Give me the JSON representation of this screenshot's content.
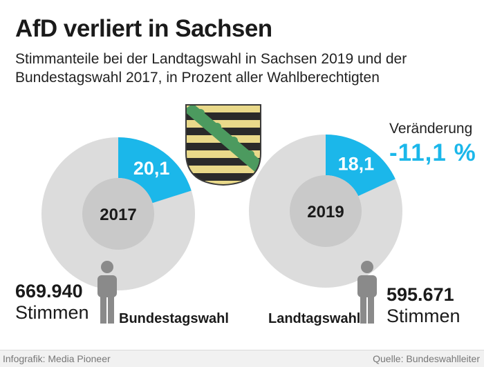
{
  "header": {
    "title": "AfD verliert in Sachsen",
    "subtitle": "Stimmanteile bei der Landtagswahl in Sachsen 2019 und der Bundestagswahl 2017, in Prozent aller Wahlberechtigten"
  },
  "change": {
    "label": "Veränderung",
    "value": "-11,1 %"
  },
  "chart_data": {
    "type": "pie",
    "title": "AfD verliert in Sachsen",
    "subtitle": "Stimmanteile bei der Landtagswahl in Sachsen 2019 und der Bundestagswahl 2017, in Prozent aller Wahlberechtigten",
    "unit": "percent",
    "charts": [
      {
        "year": "2017",
        "election": "Bundestagswahl",
        "value": 20.1,
        "value_label": "20,1",
        "votes": "669.940",
        "votes_unit": "Stimmen"
      },
      {
        "year": "2019",
        "election": "Landtagswahl",
        "value": 18.1,
        "value_label": "18,1",
        "votes": "595.671",
        "votes_unit": "Stimmen"
      }
    ]
  },
  "colors": {
    "accent": "#1bb7ea",
    "ring": "#dcdcdc",
    "hole": "#c9c9c9",
    "person": "#8a8a8a",
    "footer_bg": "#f1f1f1"
  },
  "footer": {
    "credit": "Infografik: Media Pioneer",
    "source": "Quelle: Bundeswahlleiter"
  }
}
